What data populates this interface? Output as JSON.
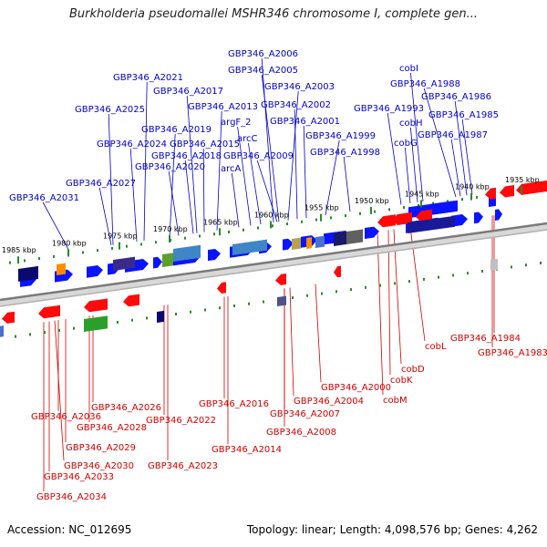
{
  "title": "Burkholderia pseudomallei MSHR346 chromosome I, complete gen...",
  "footer": {
    "accession": "Accession: NC_012695",
    "summary": "Topology: linear; Length: 4,098,576 bp; Genes: 4,262"
  },
  "colors": {
    "forward_label": "#0000c8",
    "reverse_label": "#d00000",
    "forward_gene": "#0a14ff",
    "reverse_gene": "#ff0a0a",
    "backbone": "#7a7a7a",
    "tick": "#2a8a2a"
  },
  "scale_ticks": [
    "1985 kbp",
    "1980 kbp",
    "1975 kbp",
    "1970 kbp",
    "1965 kbp",
    "1960 kbp",
    "1955 kbp",
    "1950 kbp",
    "1945 kbp",
    "1940 kbp",
    "1935 kbp"
  ],
  "forward_labels": [
    "GBP346_A2006",
    "GBP346_A2005",
    "GBP346_A2021",
    "GBP346_A2003",
    "GBP346_A2017",
    "GBP346_A2025",
    "GBP346_A2013",
    "GBP346_A2002",
    "argF_2",
    "GBP346_A2001",
    "GBP346_A2019",
    "arcC",
    "GBP346_A1999",
    "GBP346_A2024",
    "GBP346_A2015",
    "GBP346_A2018",
    "GBP346_A2009",
    "GBP346_A1998",
    "GBP346_A2020",
    "arcA",
    "GBP346_A2027",
    "GBP346_A2031",
    "cobI",
    "GBP346_A1988",
    "GBP346_A1986",
    "GBP346_A1993",
    "GBP346_A1985",
    "cobH",
    "GBP346_A1987",
    "cobG"
  ],
  "reverse_labels": [
    "GBP346_A2026",
    "GBP346_A2036",
    "GBP346_A2028",
    "GBP346_A2029",
    "GBP346_A2030",
    "GBP346_A2033",
    "GBP346_A2034",
    "GBP346_A2022",
    "GBP346_A2023",
    "GBP346_A2016",
    "GBP346_A2014",
    "GBP346_A2000",
    "GBP346_A2004",
    "GBP346_A2007",
    "GBP346_A2008",
    "cobD",
    "cobK",
    "cobM",
    "cobL",
    "GBP346_A1984",
    "GBP346_A1983"
  ]
}
